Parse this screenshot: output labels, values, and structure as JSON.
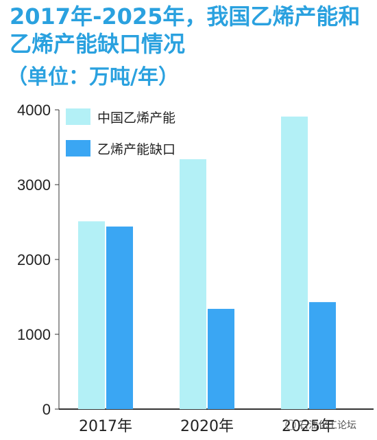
{
  "chart_data": {
    "type": "bar",
    "title": "2017年-2025年，我国乙烯产能和乙烯产能缺口情况",
    "subtitle": "（单位：万吨/年）",
    "categories": [
      "2017年",
      "2020年",
      "2025年"
    ],
    "series": [
      {
        "name": "中国乙烯产能",
        "values": [
          2510,
          3340,
          3910
        ],
        "color": "#b3f0f6"
      },
      {
        "name": "乙烯产能缺口",
        "values": [
          2440,
          1340,
          1430
        ],
        "color": "#3aa6f3"
      }
    ],
    "yticks": [
      0,
      1000,
      2000,
      3000,
      4000
    ],
    "ylim": [
      0,
      4000
    ],
    "xlabel": "",
    "ylabel": "",
    "grid": false,
    "legend": "top-left"
  },
  "watermark": "石油化工论坛"
}
